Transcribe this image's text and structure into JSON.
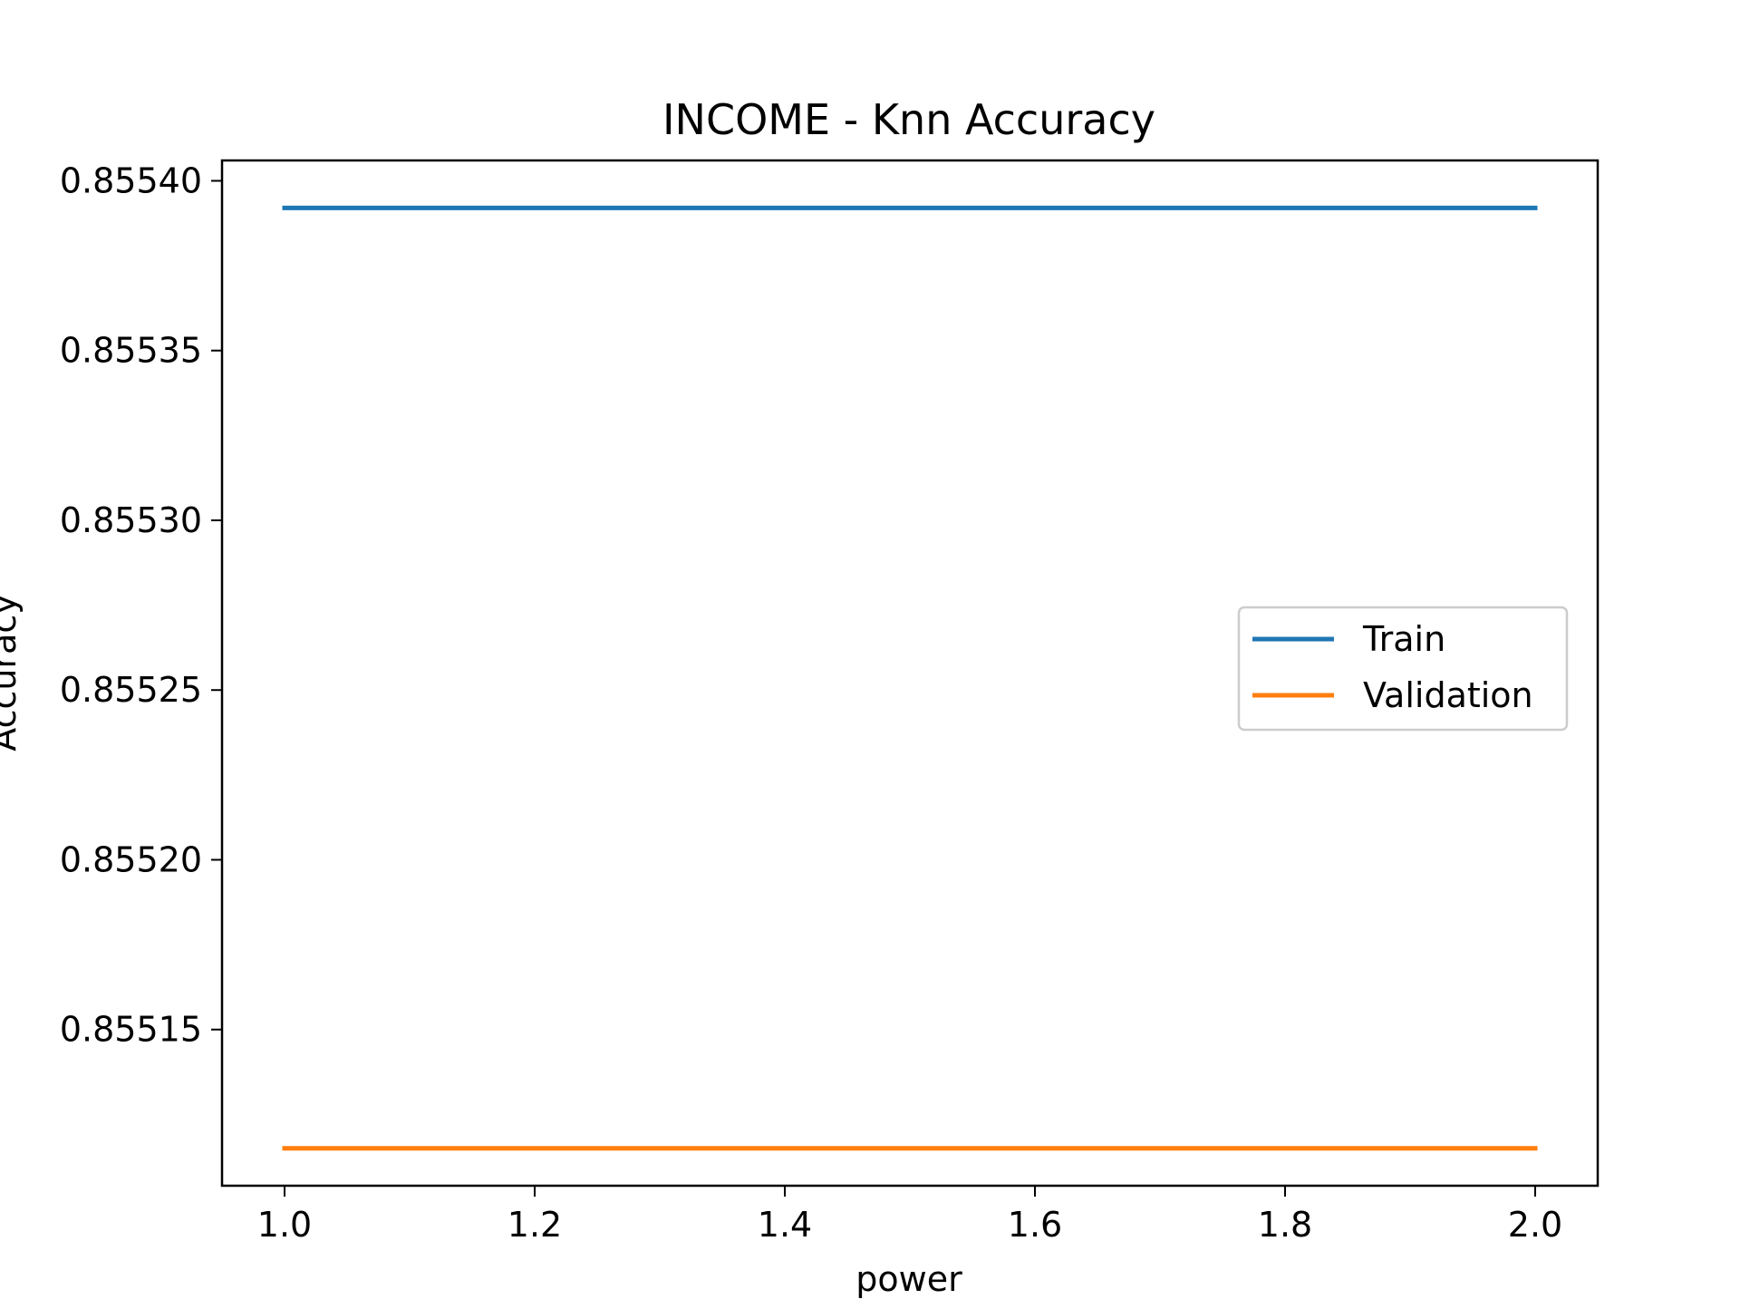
{
  "chart_data": {
    "type": "line",
    "title": "INCOME - Knn Accuracy",
    "xlabel": "power",
    "ylabel": "Accuracy",
    "x": [
      1.0,
      2.0
    ],
    "xlim": [
      0.95,
      2.05
    ],
    "ylim": [
      0.855104,
      0.855406
    ],
    "xticks": [
      1.0,
      1.2,
      1.4,
      1.6,
      1.8,
      2.0
    ],
    "xtick_labels": [
      "1.0",
      "1.2",
      "1.4",
      "1.6",
      "1.8",
      "2.0"
    ],
    "yticks": [
      0.85515,
      0.8552,
      0.85525,
      0.8553,
      0.85535,
      0.8554
    ],
    "ytick_labels": [
      "0.85515",
      "0.85520",
      "0.85525",
      "0.85530",
      "0.85535",
      "0.85540"
    ],
    "series": [
      {
        "name": "Train",
        "color": "#1f77b4",
        "values": [
          0.855392,
          0.855392
        ]
      },
      {
        "name": "Validation",
        "color": "#ff7f0e",
        "values": [
          0.855115,
          0.855115
        ]
      }
    ],
    "legend": "center-right",
    "grid": false
  }
}
